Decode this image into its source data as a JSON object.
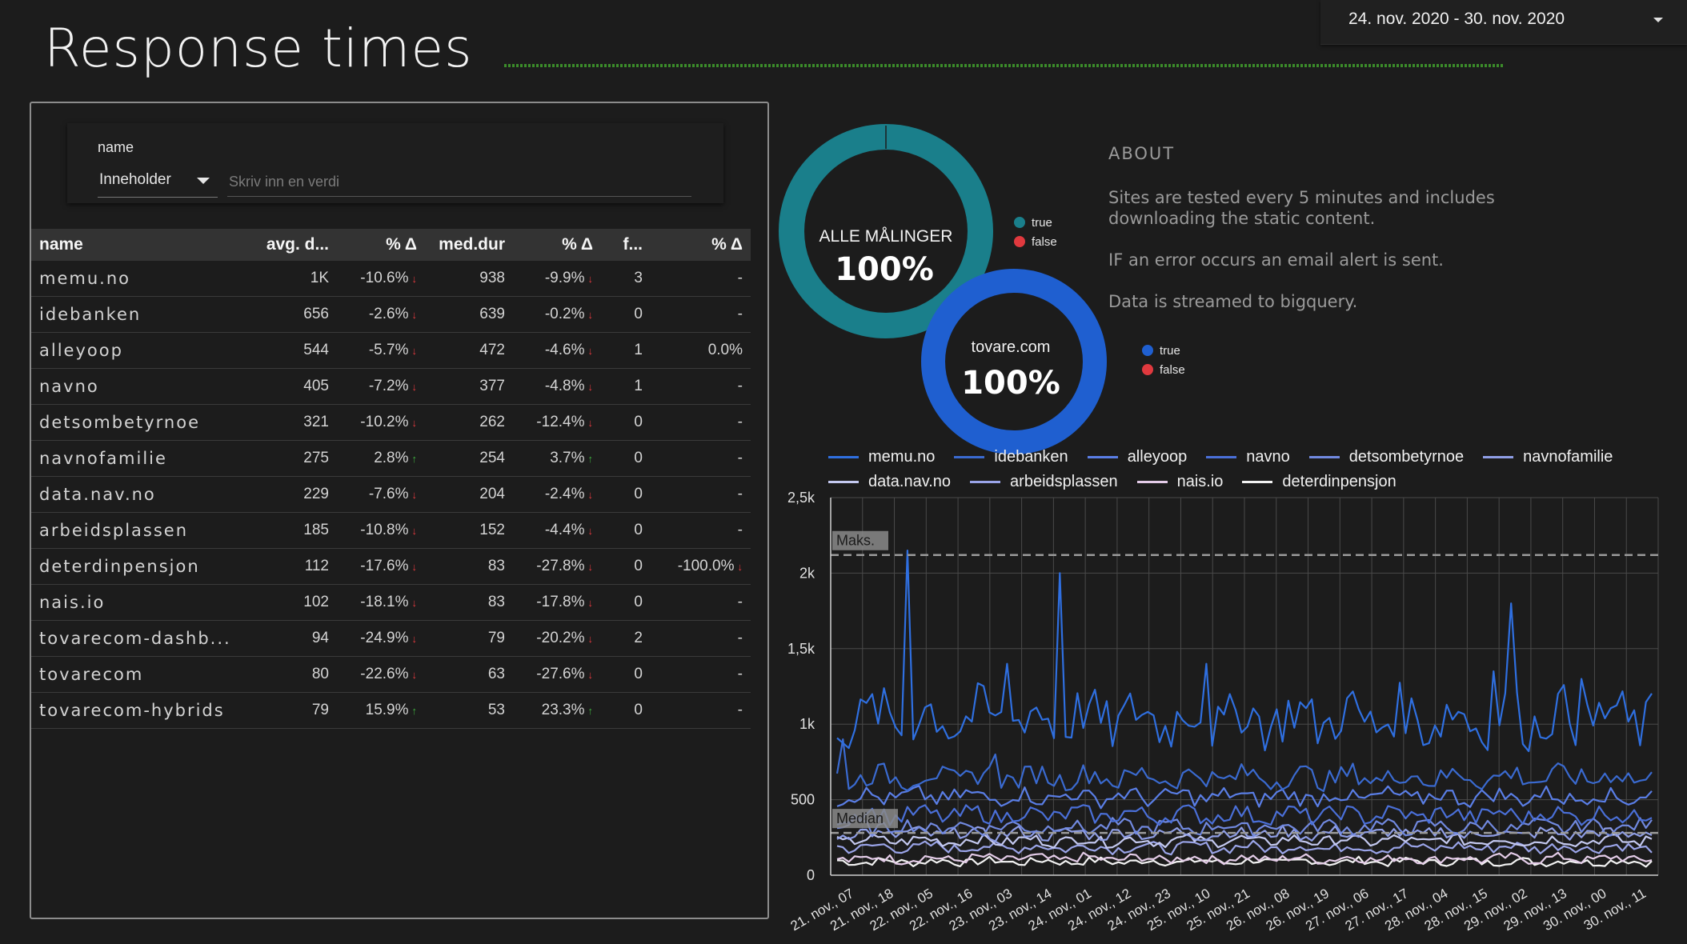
{
  "header": {
    "title": "Response times",
    "date_range": "24. nov. 2020 - 30. nov. 2020"
  },
  "filter": {
    "label": "name",
    "operator": "Inneholder",
    "placeholder": "Skriv inn en verdi"
  },
  "table": {
    "columns": [
      "name",
      "avg. d...",
      "% Δ",
      "med.dur",
      "% Δ",
      "f...",
      "% Δ"
    ],
    "rows": [
      {
        "name": "memu.no",
        "avg": "1K",
        "d1": "-10.6%",
        "t1": "down",
        "med": "938",
        "d2": "-9.9%",
        "t2": "down",
        "f": "3",
        "d3": "-",
        "t3": ""
      },
      {
        "name": "idebanken",
        "avg": "656",
        "d1": "-2.6%",
        "t1": "down",
        "med": "639",
        "d2": "-0.2%",
        "t2": "down",
        "f": "0",
        "d3": "-",
        "t3": ""
      },
      {
        "name": "alleyoop",
        "avg": "544",
        "d1": "-5.7%",
        "t1": "down",
        "med": "472",
        "d2": "-4.6%",
        "t2": "down",
        "f": "1",
        "d3": "0.0%",
        "t3": ""
      },
      {
        "name": "navno",
        "avg": "405",
        "d1": "-7.2%",
        "t1": "down",
        "med": "377",
        "d2": "-4.8%",
        "t2": "down",
        "f": "1",
        "d3": "-",
        "t3": ""
      },
      {
        "name": "detsombetyrnoe",
        "avg": "321",
        "d1": "-10.2%",
        "t1": "down",
        "med": "262",
        "d2": "-12.4%",
        "t2": "down",
        "f": "0",
        "d3": "-",
        "t3": ""
      },
      {
        "name": "navnofamilie",
        "avg": "275",
        "d1": "2.8%",
        "t1": "up",
        "med": "254",
        "d2": "3.7%",
        "t2": "up",
        "f": "0",
        "d3": "-",
        "t3": ""
      },
      {
        "name": "data.nav.no",
        "avg": "229",
        "d1": "-7.6%",
        "t1": "down",
        "med": "204",
        "d2": "-2.4%",
        "t2": "down",
        "f": "0",
        "d3": "-",
        "t3": ""
      },
      {
        "name": "arbeidsplassen",
        "avg": "185",
        "d1": "-10.8%",
        "t1": "down",
        "med": "152",
        "d2": "-4.4%",
        "t2": "down",
        "f": "0",
        "d3": "-",
        "t3": ""
      },
      {
        "name": "deterdinpensjon",
        "avg": "112",
        "d1": "-17.6%",
        "t1": "down",
        "med": "83",
        "d2": "-27.8%",
        "t2": "down",
        "f": "0",
        "d3": "-100.0%",
        "t3": "down"
      },
      {
        "name": "nais.io",
        "avg": "102",
        "d1": "-18.1%",
        "t1": "down",
        "med": "83",
        "d2": "-17.8%",
        "t2": "down",
        "f": "0",
        "d3": "-",
        "t3": ""
      },
      {
        "name": "tovarecom-dashb...",
        "avg": "94",
        "d1": "-24.9%",
        "t1": "down",
        "med": "79",
        "d2": "-20.2%",
        "t2": "down",
        "f": "2",
        "d3": "-",
        "t3": ""
      },
      {
        "name": "tovarecom",
        "avg": "80",
        "d1": "-22.6%",
        "t1": "down",
        "med": "63",
        "d2": "-27.6%",
        "t2": "down",
        "f": "0",
        "d3": "-",
        "t3": ""
      },
      {
        "name": "tovarecom-hybrids",
        "avg": "79",
        "d1": "15.9%",
        "t1": "up",
        "med": "53",
        "d2": "23.3%",
        "t2": "up",
        "f": "0",
        "d3": "-",
        "t3": ""
      }
    ]
  },
  "donut_all": {
    "label": "ALLE MÅLINGER",
    "value": "100%",
    "color": "#1a7f8b",
    "legend": [
      "true",
      "false"
    ],
    "legend_colors": [
      "#1a7f8b",
      "#e0393e"
    ]
  },
  "donut_tovare": {
    "label": "tovare.com",
    "value": "100%",
    "color": "#1f5fd0",
    "legend": [
      "true",
      "false"
    ],
    "legend_colors": [
      "#1f5fd0",
      "#e0393e"
    ]
  },
  "about": {
    "title": "ABOUT",
    "lines": [
      "Sites are tested every 5 minutes and includes downloading the static content.",
      "IF an error occurs an email alert is sent.",
      "Data is streamed to bigquery."
    ]
  },
  "chart_data": {
    "type": "line",
    "title": "",
    "ylim": [
      0,
      2500
    ],
    "yticks": [
      "0",
      "500",
      "1k",
      "1,5k",
      "2k",
      "2,5k"
    ],
    "ytick_values": [
      0,
      500,
      1000,
      1500,
      2000,
      2500
    ],
    "xticks": [
      "21. nov., 07",
      "21. nov., 18",
      "22. nov., 05",
      "22. nov., 16",
      "23. nov., 03",
      "23. nov., 14",
      "24. nov., 01",
      "24. nov., 12",
      "24. nov., 23",
      "25. nov., 10",
      "25. nov., 21",
      "26. nov., 08",
      "26. nov., 19",
      "27. nov., 06",
      "27. nov., 17",
      "28. nov., 04",
      "28. nov., 15",
      "29. nov., 02",
      "29. nov., 13",
      "30. nov., 00",
      "30. nov., 11"
    ],
    "reference_lines": [
      {
        "label": "Maks.",
        "value": 2120
      },
      {
        "label": "Median",
        "value": 280
      }
    ],
    "series": [
      {
        "name": "memu.no",
        "color": "#2f6fe0",
        "base": 1040,
        "amp": 170,
        "spikes": [
          [
            12,
            2150
          ],
          [
            38,
            2000
          ],
          [
            115,
            1800
          ],
          [
            29,
            1400
          ],
          [
            63,
            1400
          ],
          [
            112,
            1350
          ],
          [
            127,
            1300
          ]
        ]
      },
      {
        "name": "idebanken",
        "color": "#3a6ad0",
        "base": 650,
        "amp": 70,
        "spikes": [
          [
            1,
            900
          ],
          [
            27,
            800
          ]
        ]
      },
      {
        "name": "alleyoop",
        "color": "#5a7ee6",
        "base": 520,
        "amp": 55,
        "spikes": []
      },
      {
        "name": "navno",
        "color": "#4a6fd8",
        "base": 400,
        "amp": 55,
        "spikes": []
      },
      {
        "name": "detsombetyrnoe",
        "color": "#7189e0",
        "base": 320,
        "amp": 45,
        "spikes": []
      },
      {
        "name": "navnofamilie",
        "color": "#8f9ee6",
        "base": 275,
        "amp": 40,
        "spikes": []
      },
      {
        "name": "data.nav.no",
        "color": "#c4c9f0",
        "base": 230,
        "amp": 35,
        "spikes": []
      },
      {
        "name": "arbeidsplassen",
        "color": "#9aa4e8",
        "base": 185,
        "amp": 35,
        "spikes": []
      },
      {
        "name": "nais.io",
        "color": "#e4cce8",
        "base": 110,
        "amp": 30,
        "spikes": []
      },
      {
        "name": "deterdinpensjon",
        "color": "#f2f2f2",
        "base": 90,
        "amp": 25,
        "spikes": []
      }
    ]
  }
}
